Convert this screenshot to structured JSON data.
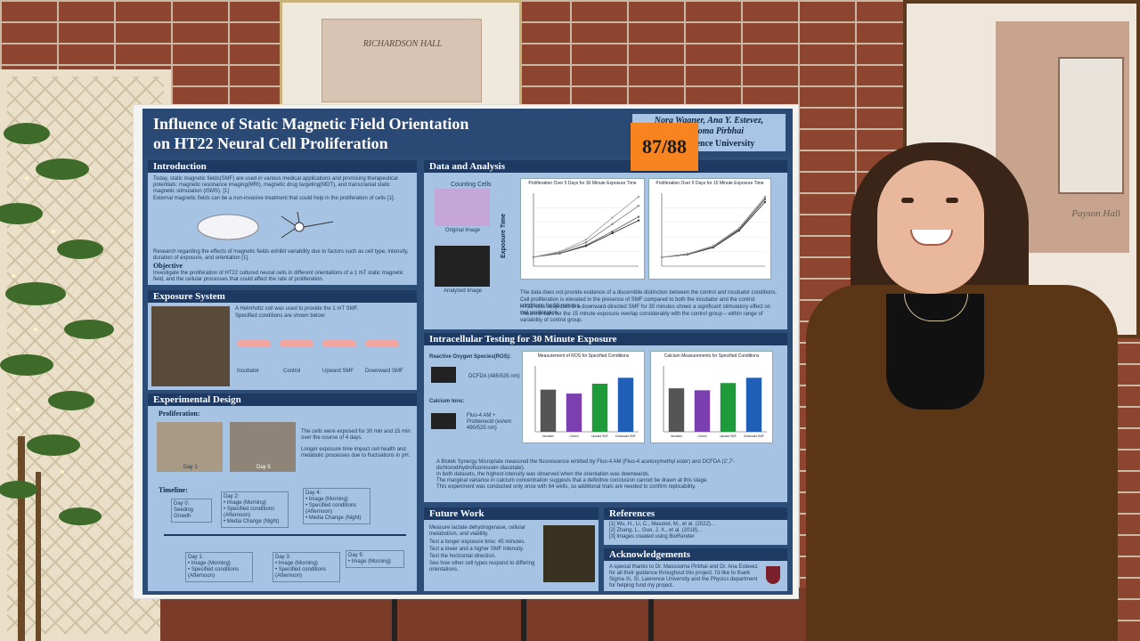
{
  "scene": {
    "wall_color": "#8e4530",
    "mortar_color": "#c9b9a4",
    "poster_bg": "#2c4d78",
    "panel_bg": "#a7c3e3",
    "tag_color": "#f7841e",
    "top_frame_label": "RICHARDSON HALL",
    "right_frame_signature": "Payson Hall"
  },
  "poster": {
    "title_line1": "Influence of Static Magnetic Field Orientation",
    "title_line2": "on HT22 Neural Cell Proliferation",
    "authors": "Nora Wagner, Ana Y. Estevez,\nMassooma Pirbhai",
    "university": "St. Lawrence University",
    "board_number": "87/88",
    "introduction": {
      "heading": "Introduction",
      "bullets": [
        "Today, static magnetic fields(SMF) are used in various medical applications and promising therapeutical potentials: magnetic resonance imaging(MRI), magnetic drug targeting(MDT), and transcranial static magnetic stimulation (tSMS). [1]",
        "External magnetic fields can be a non-invasive treatment that could help in the proliferation of cells [1].",
        "Research regarding the effects of magnetic fields exhibit variability due to factors such as cell type, intensity, duration of exposure, and orientation [1]."
      ],
      "objective_label": "Objective",
      "objective": "Investigate the proliferation of HT22 cultured neural cells in different orientations of a 1 mT static magnetic field, and the cellular processes that could affect the rate of proliferation."
    },
    "exposure": {
      "heading": "Exposure System",
      "bullets": [
        "A Helmholtz coil was used to provide the 1 mT SMF.",
        "Specified conditions are shown below:"
      ],
      "conditions": [
        "Incubator",
        "Control",
        "Upward SMF",
        "Downward SMF"
      ]
    },
    "design": {
      "heading": "Experimental Design",
      "proliferation_label": "Proliferation:",
      "day_labels": [
        "Day 1",
        "Day 5"
      ],
      "bullets": [
        "The cells were exposed for 30 min and 15 min over the course of 4 days.",
        "Longer exposure time impact cell health and metabolic processes due to fluctuations in pH."
      ],
      "timeline_label": "Timeline:",
      "timeline_top": [
        "Day 0:\nSeeding\nGrowth",
        "Day 2:\n• Image (Morning)\n• Specified conditions (Afternoon)\n• Media Change (Night)",
        "Day 4:\n• Image (Morning)\n• Specified conditions (Afternoon)\n• Media Change (Night)"
      ],
      "timeline_bottom": [
        "Day 1:\n• Image (Morning)\n• Specified conditions (Afternoon)",
        "Day 3:\n• Image (Morning)\n• Specified conditions (Afternoon)",
        "Day 5:\n• Image (Morning)"
      ]
    },
    "data": {
      "heading": "Data and Analysis",
      "counting_label": "Counting Cells",
      "original_label": "Original Image",
      "analyzed_label": "Analyzed Image",
      "axis_side_label": "Exposure Time",
      "chart1_title": "Proliferation Over 5 Days for 30 Minute Exposure Time",
      "chart2_title": "Proliferation Over 5 Days for 15 Minute Exposure Time",
      "bullets": [
        "The data does not provide evidence of a discernible distinction between the control and incubator conditions.",
        "Cell proliferation is elevated in the presence of SMF compared to both the incubator and the control conditions for 30 minutes.",
        "HT22 cells subjected to a downward-directed SMF for 30 minutes shows a significant stimulatory effect on cell proliferation.",
        "The error bars for the 15 minute exposure overlap considerably with the control group – within range of variability of control group."
      ]
    },
    "intracellular": {
      "heading": "Intracellular Testing for 30 Minute Exposure",
      "ros_label": "Reactive Oxygen Species(ROS):",
      "ros_dye": "DCFDA (485/535 nm)",
      "calcium_label": "Calcium Ions:",
      "calcium_dye": "Fluo-4 AM + Probenecid (ex/em 490/525 nm)",
      "chart1_title": "Measurement of ROS for Specified Conditions",
      "chart2_title": "Calcium Measurements for Specified Conditions",
      "bullets": [
        "A Biotek Synergy Microplate measured the fluorescence emitted by Fluo-4 AM (Fluo-4 acetoxymethyl ester) and DCFDA (2',7'-dichlorodihydrofluorescein diacetate).",
        "In both datasets, the highest intensity was observed when the orientation was downwards.",
        "The marginal variance in calcium concentration suggests that a definitive conclusion cannot be drawn at this stage.",
        "This experiment was conducted only once with 64 wells, so additional trials are needed to confirm replicability."
      ]
    },
    "future": {
      "heading": "Future Work",
      "bullets": [
        "Measure lactate dehydrogenase, cellular metabolism, and viability.",
        "Test a longer exposure time: 45 minutes.",
        "Test a lower and a higher SMF intensity.",
        "Test the horizontal direction.",
        "See how other cell types respond to differing orientations."
      ]
    },
    "references": {
      "heading": "References",
      "items": [
        "[1] Wu, H., Li, C., Masood, M., et al. (2022)...",
        "[2] Zhang, L., Guo, J. X., et al. (2018)...",
        "[3] Images created using BioRender"
      ]
    },
    "acknowledgements": {
      "heading": "Acknowledgements",
      "text": "A special thanks to Dr. Massooma Pirbhai and Dr. Ana Estevez for all their guidance throughout this project. I'd like to thank Sigma Xi, St. Lawrence University and the Physics department for helping fund my project."
    }
  },
  "chart_data": [
    {
      "type": "line",
      "title": "Proliferation Over 5 Days for 30 Minute Exposure Time",
      "x": [
        1,
        2,
        3,
        4,
        5
      ],
      "series": [
        {
          "name": "Incubator",
          "values": [
            1.0,
            1.4,
            2.2,
            3.6,
            5.0
          ]
        },
        {
          "name": "Control",
          "values": [
            1.0,
            1.4,
            2.3,
            3.8,
            5.4
          ]
        },
        {
          "name": "Upward SMF",
          "values": [
            1.0,
            1.5,
            2.6,
            4.6,
            6.6
          ]
        },
        {
          "name": "Downward SMF",
          "values": [
            1.0,
            1.6,
            2.9,
            5.3,
            7.6
          ]
        }
      ]
    },
    {
      "type": "line",
      "title": "Proliferation Over 5 Days for 15 Minute Exposure Time",
      "x": [
        1,
        2,
        3,
        4,
        5
      ],
      "series": [
        {
          "name": "Incubator",
          "values": [
            1.0,
            1.3,
            2.1,
            4.0,
            7.2
          ]
        },
        {
          "name": "Control",
          "values": [
            1.0,
            1.3,
            2.2,
            4.1,
            7.5
          ]
        },
        {
          "name": "Upward SMF",
          "values": [
            1.0,
            1.4,
            2.2,
            4.2,
            7.6
          ]
        },
        {
          "name": "Downward SMF",
          "values": [
            1.0,
            1.4,
            2.3,
            4.3,
            7.8
          ]
        }
      ]
    },
    {
      "type": "bar",
      "title": "Measurement of ROS for Specified Conditions",
      "categories": [
        "Incubator",
        "Control",
        "Upward SMF",
        "Downward SMF"
      ],
      "values": [
        64,
        58,
        73,
        82
      ],
      "colors": [
        "#555555",
        "#7b3fb0",
        "#1f9a3a",
        "#1f5fb8"
      ]
    },
    {
      "type": "bar",
      "title": "Calcium Measurements for Specified Conditions",
      "categories": [
        "Incubator",
        "Control",
        "Upward SMF",
        "Downward SMF"
      ],
      "values": [
        66,
        63,
        74,
        82
      ],
      "colors": [
        "#555555",
        "#7b3fb0",
        "#1f9a3a",
        "#1f5fb8"
      ]
    }
  ]
}
